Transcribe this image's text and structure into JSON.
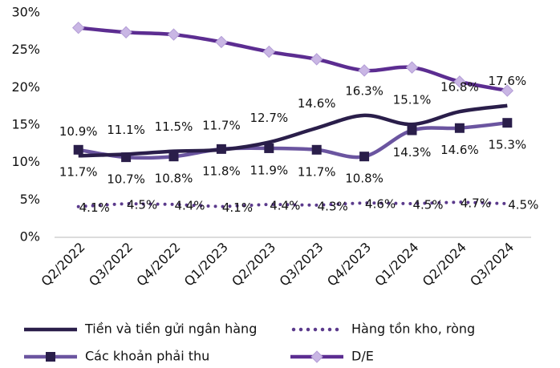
{
  "chart_data": {
    "type": "line",
    "categories": [
      "Q2/2022",
      "Q3/2022",
      "Q4/2022",
      "Q1/2023",
      "Q2/2023",
      "Q3/2023",
      "Q4/2023",
      "Q1/2024",
      "Q2/2024",
      "Q3/2024"
    ],
    "ylim": [
      0,
      30
    ],
    "yticks": [
      {
        "value": 0,
        "label": "0%"
      },
      {
        "value": 5,
        "label": "5%"
      },
      {
        "value": 10,
        "label": "10%"
      },
      {
        "value": 15,
        "label": "15%"
      },
      {
        "value": 20,
        "label": "20%"
      },
      {
        "value": 25,
        "label": "25%"
      },
      {
        "value": 30,
        "label": "30%"
      }
    ],
    "legend": "bottom",
    "series": [
      {
        "name": "Tiền và tiền gửi ngân hàng",
        "color": "#2a1e4a",
        "style": "solid",
        "values": [
          10.9,
          11.1,
          11.5,
          11.7,
          12.7,
          14.6,
          16.3,
          15.1,
          16.8,
          17.6
        ],
        "value_labels": [
          "10.9%",
          "11.1%",
          "11.5%",
          "11.7%",
          "12.7%",
          "14.6%",
          "16.3%",
          "15.1%",
          "16.8%",
          "17.6%"
        ]
      },
      {
        "name": "Hàng tồn kho, ròng",
        "color": "#5b3a8c",
        "style": "dotted",
        "values": [
          4.1,
          4.5,
          4.4,
          4.1,
          4.4,
          4.3,
          4.6,
          4.5,
          4.7,
          4.5
        ],
        "value_labels": [
          "4.1%",
          "4.5%",
          "4.4%",
          "4.1%",
          "4.4%",
          "4.3%",
          "4.6%",
          "4.5%",
          "4.7%",
          "4.5%"
        ]
      },
      {
        "name": "Các khoản phải thu",
        "color": "#6b55a0",
        "style": "square",
        "values": [
          11.7,
          10.7,
          10.8,
          11.8,
          11.9,
          11.7,
          10.8,
          14.3,
          14.6,
          15.3
        ],
        "value_labels": [
          "11.7%",
          "10.7%",
          "10.8%",
          "11.8%",
          "11.9%",
          "11.7%",
          "10.8%",
          "14.3%",
          "14.6%",
          "15.3%"
        ]
      },
      {
        "name": "D/E",
        "color": "#5c2d91",
        "style": "diamond",
        "values": [
          28.0,
          27.4,
          27.1,
          26.1,
          24.8,
          23.8,
          22.3,
          22.7,
          20.8,
          19.6
        ]
      }
    ]
  }
}
